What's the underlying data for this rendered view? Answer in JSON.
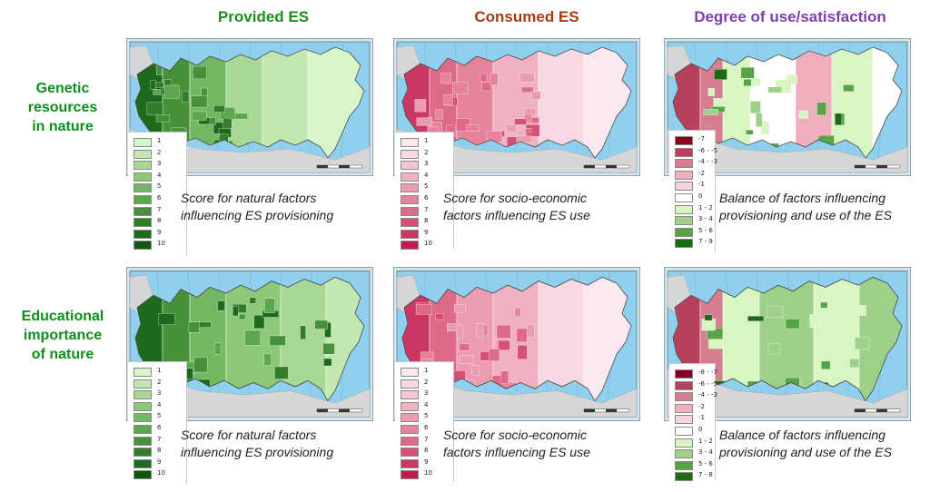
{
  "columns": [
    {
      "title": "Provided ES",
      "color": "#1a8f1a"
    },
    {
      "title": "Consumed ES",
      "color": "#a83a13"
    },
    {
      "title": "Degree of use/satisfaction",
      "color": "#7b3fb0"
    }
  ],
  "rows": [
    {
      "label_lines": [
        "Genetic",
        "resources",
        "in nature"
      ]
    },
    {
      "label_lines": [
        "Educational",
        "importance",
        "of nature"
      ]
    }
  ],
  "captions": {
    "provided": [
      "Score for natural factors",
      "influencing ES provisioning"
    ],
    "consumed": [
      "Score for socio-economic",
      "factors influencing ES use"
    ],
    "balance": [
      "Balance of factors influencing",
      "provisioning and use of the ES"
    ]
  },
  "legends": {
    "provided": {
      "labels": [
        "1",
        "2",
        "3",
        "4",
        "5",
        "6",
        "7",
        "8",
        "9",
        "10"
      ],
      "colors": [
        "#d9f5cc",
        "#c2e8b0",
        "#a7d894",
        "#8dc87a",
        "#74b762",
        "#5ca64d",
        "#46913a",
        "#317d2a",
        "#1e6a1c",
        "#0d5510"
      ]
    },
    "consumed": {
      "labels": [
        "1",
        "2",
        "3",
        "4",
        "5",
        "6",
        "7",
        "8",
        "9",
        "10"
      ],
      "colors": [
        "#fbe8f0",
        "#f8d8e2",
        "#f4c5d2",
        "#f0b1c1",
        "#eb9cb0",
        "#e4839b",
        "#dd6a87",
        "#d55074",
        "#cc3662",
        "#c01c50"
      ]
    },
    "balance_genetic": {
      "labels": [
        "-7",
        "-6 - -5",
        "-4 - -3",
        "-2",
        "-1",
        "0",
        "1 - 2",
        "3 - 4",
        "5 - 6",
        "7 - 9"
      ],
      "colors": [
        "#8b0020",
        "#b8405a",
        "#d47e90",
        "#eeaebb",
        "#f8d3dc",
        "#ffffff",
        "#d8f5c2",
        "#9fd08a",
        "#57a447",
        "#1d6a16"
      ]
    },
    "balance_educational": {
      "labels": [
        "-8 - -7",
        "-6 - -5",
        "-4 - -3",
        "-2",
        "-1",
        "0",
        "1 - 2",
        "3 - 4",
        "5 - 6",
        "7 - 8"
      ],
      "colors": [
        "#8b0020",
        "#b8405a",
        "#d47e90",
        "#eeaebb",
        "#f8d3dc",
        "#ffffff",
        "#d8f5c2",
        "#9fd08a",
        "#57a447",
        "#1d6a16"
      ]
    }
  }
}
